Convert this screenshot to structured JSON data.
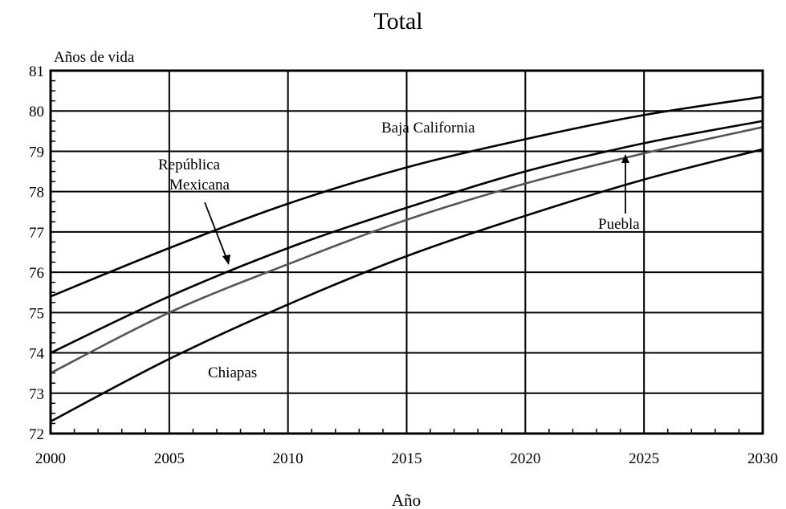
{
  "chart_data": {
    "type": "line",
    "title": "Total",
    "ylabel": "Años de vida",
    "xlabel": "Año",
    "x": [
      2000,
      2005,
      2010,
      2015,
      2020,
      2025,
      2030
    ],
    "xticks": [
      "2000",
      "2005",
      "2010",
      "2015",
      "2020",
      "2025",
      "2030"
    ],
    "yticks": [
      "72",
      "73",
      "74",
      "75",
      "76",
      "77",
      "78",
      "79",
      "80",
      "81"
    ],
    "xlim": [
      2000,
      2030
    ],
    "ylim": [
      72,
      81
    ],
    "grid": true,
    "series": [
      {
        "name": "Baja California",
        "values": [
          75.4,
          76.6,
          77.7,
          78.6,
          79.3,
          79.9,
          80.35
        ],
        "color": "#000000"
      },
      {
        "name": "República Mexicana",
        "values": [
          74.0,
          75.4,
          76.6,
          77.6,
          78.5,
          79.2,
          79.75
        ],
        "color": "#000000"
      },
      {
        "name": "Puebla",
        "values": [
          73.5,
          75.0,
          76.2,
          77.3,
          78.2,
          78.95,
          79.6
        ],
        "color": "#555555"
      },
      {
        "name": "Chiapas",
        "values": [
          72.3,
          73.85,
          75.2,
          76.4,
          77.4,
          78.3,
          79.05
        ],
        "color": "#000000"
      }
    ],
    "annotations": {
      "baja": "Baja California",
      "rep_line1": "República",
      "rep_line2": "Mexicana",
      "puebla": "Puebla",
      "chiapas": "Chiapas"
    }
  }
}
